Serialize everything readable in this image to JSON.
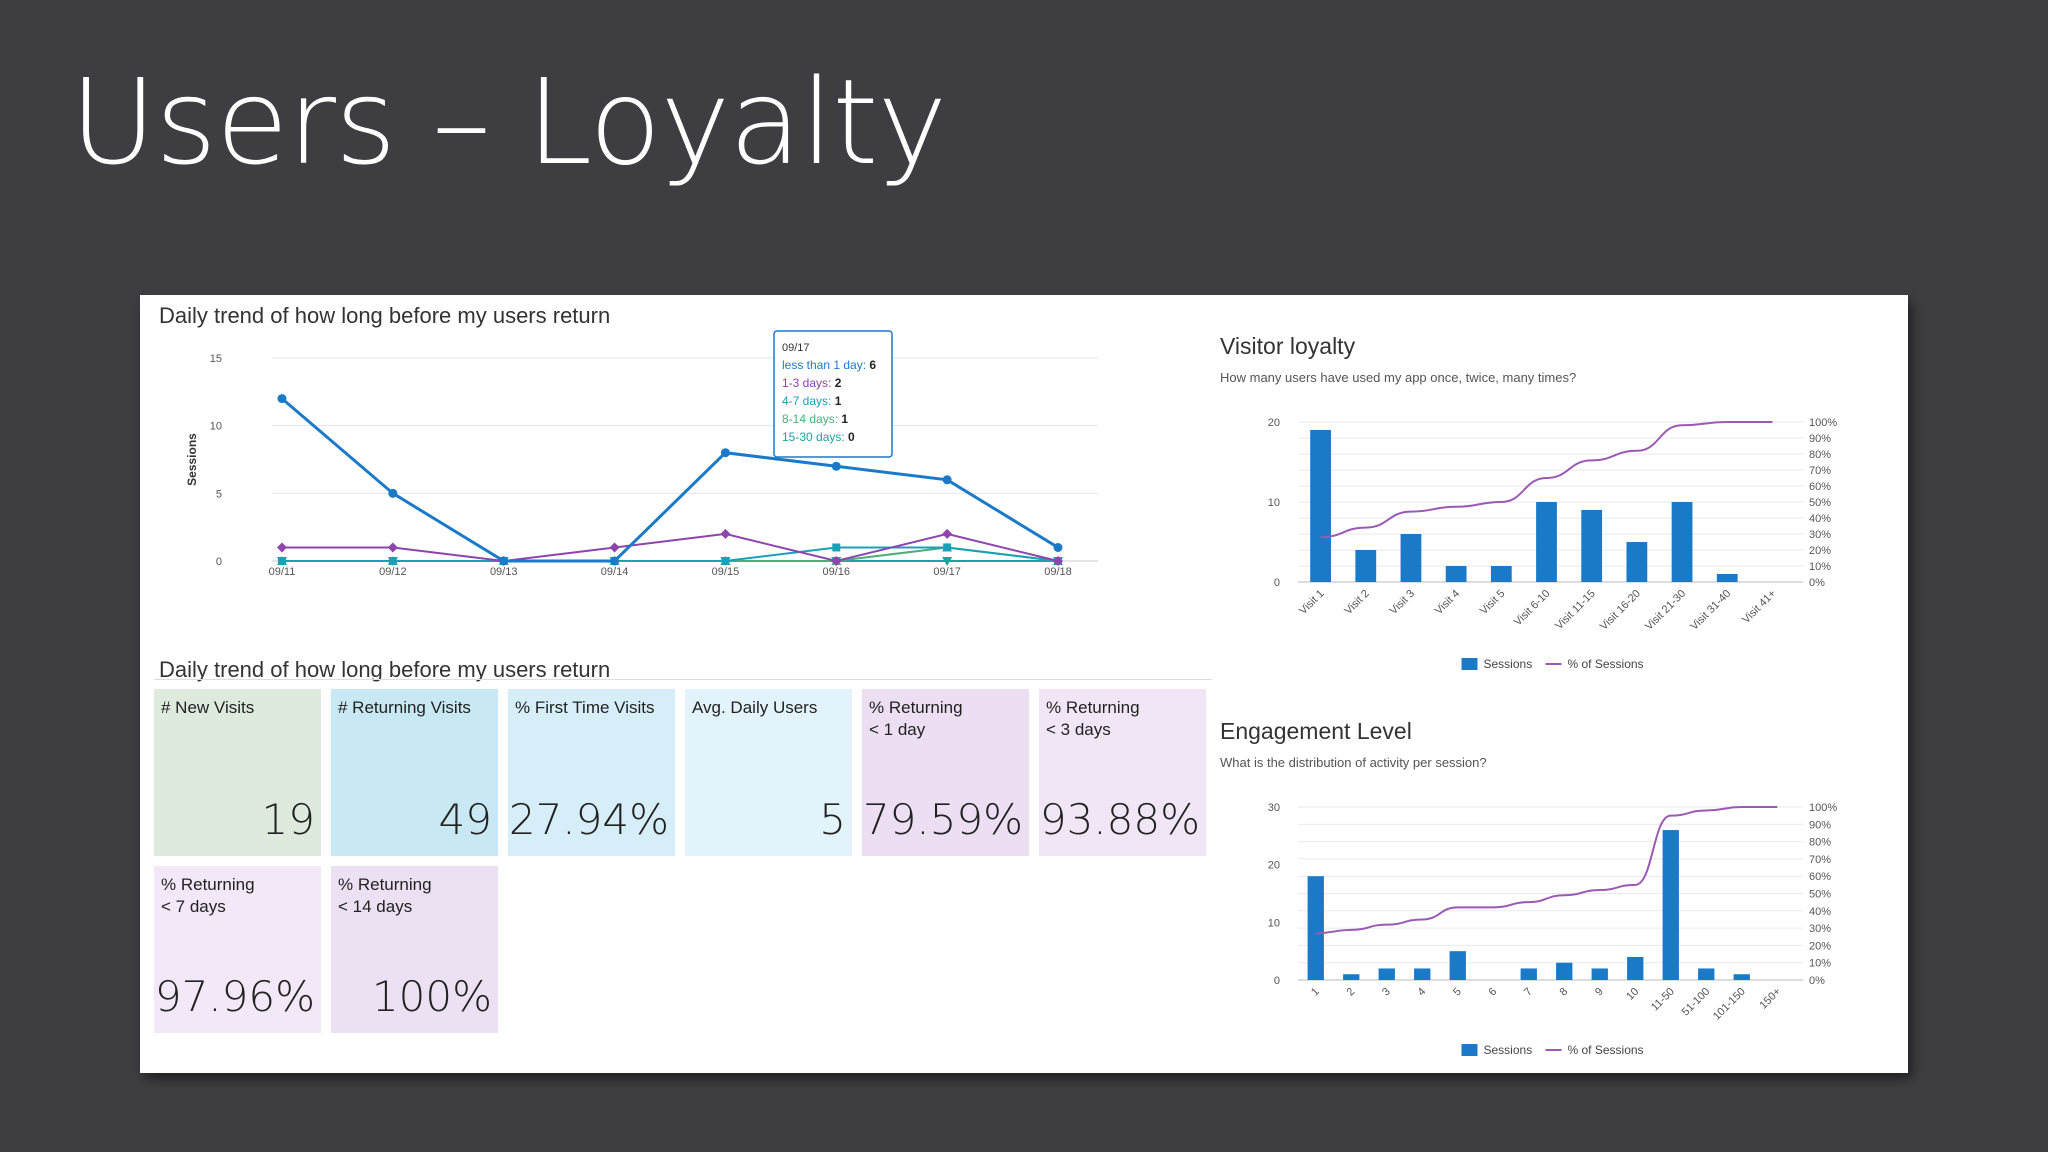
{
  "slide": {
    "title": "Users – Loyalty"
  },
  "trend": {
    "title": "Daily trend of how long before my users return",
    "ylabel": "Sessions",
    "tooltip": {
      "date": "09/17",
      "rows": [
        {
          "label": "less than 1 day",
          "value": "6",
          "color": "#1a7ac8"
        },
        {
          "label": "1-3 days",
          "value": "2",
          "color": "#8e44ad"
        },
        {
          "label": "4-7 days",
          "value": "1",
          "color": "#17a2b8"
        },
        {
          "label": "8-14 days",
          "value": "1",
          "color": "#4caf7a"
        },
        {
          "label": "15-30 days",
          "value": "0",
          "color": "#1aa3a0"
        }
      ]
    }
  },
  "kpi": {
    "title": "Daily trend of how long before my users return",
    "tiles": [
      {
        "label": "# New Visits",
        "value": "19",
        "color": "#dfeadf"
      },
      {
        "label": "# Returning Visits",
        "value": "49",
        "color": "#c8e9f4"
      },
      {
        "label": "% First Time Visits",
        "value": "27.94%",
        "color": "#d5eef8"
      },
      {
        "label": "Avg. Daily Users",
        "value": "5",
        "color": "#e3f3fb"
      },
      {
        "label": "% Returning\n< 1 day",
        "value": "79.59%",
        "color": "#ecdff3"
      },
      {
        "label": "% Returning\n< 3 days",
        "value": "93.88%",
        "color": "#f1e6f6"
      },
      {
        "label": "% Returning\n< 7 days",
        "value": "97.96%",
        "color": "#f2e8f7"
      },
      {
        "label": "% Returning\n< 14 days",
        "value": "100%",
        "color": "#ebe1f3"
      }
    ]
  },
  "loyalty": {
    "title": "Visitor loyalty",
    "subtitle": "How many users have used my app once, twice, many times?"
  },
  "engagement": {
    "title": "Engagement Level",
    "subtitle": "What is the distribution of activity per session?"
  },
  "chart_data": [
    {
      "type": "line",
      "title": "Daily trend of how long before my users return",
      "ylabel": "Sessions",
      "ylim": [
        0,
        15
      ],
      "yticks": [
        "0",
        "5",
        "10",
        "15"
      ],
      "categories": [
        "09/11",
        "09/12",
        "09/13",
        "09/14",
        "09/15",
        "09/16",
        "09/17",
        "09/18"
      ],
      "legend_position": "right",
      "series": [
        {
          "name": "less than 1 day",
          "color": "#1a7ac8",
          "marker": "circle",
          "values": [
            12,
            5,
            0,
            0,
            8,
            7,
            6,
            1
          ]
        },
        {
          "name": "1-3 days",
          "color": "#8e44ad",
          "marker": "diamond",
          "values": [
            1,
            1,
            0,
            1,
            2,
            0,
            2,
            0
          ]
        },
        {
          "name": "4-7 days",
          "color": "#17a2b8",
          "marker": "square",
          "values": [
            0,
            0,
            0,
            0,
            0,
            1,
            1,
            0
          ]
        },
        {
          "name": "8-14 days",
          "color": "#4caf7a",
          "marker": "triangle",
          "values": [
            0,
            0,
            0,
            0,
            0,
            0,
            1,
            0
          ]
        },
        {
          "name": "15-30 days",
          "color": "#1aa3a0",
          "marker": "triangle-down",
          "values": [
            0,
            0,
            0,
            0,
            0,
            0,
            0,
            0
          ]
        }
      ]
    },
    {
      "type": "bar",
      "title": "Visitor loyalty",
      "subtitle": "How many users have used my app once, twice, many times?",
      "categories": [
        "Visit 1",
        "Visit 2",
        "Visit 3",
        "Visit 4",
        "Visit 5",
        "Visit 6-10",
        "Visit 11-15",
        "Visit 16-20",
        "Visit 21-30",
        "Visit 31-40",
        "Visit 41+"
      ],
      "ylim": [
        0,
        20
      ],
      "yticks": [
        "0",
        "10",
        "20"
      ],
      "y2ticks": [
        "0%",
        "10%",
        "20%",
        "30%",
        "40%",
        "50%",
        "60%",
        "70%",
        "80%",
        "90%",
        "100%"
      ],
      "legend_position": "bottom",
      "series": [
        {
          "name": "Sessions",
          "color": "#1a7ac8",
          "values": [
            19,
            4,
            6,
            2,
            2,
            10,
            9,
            5,
            10,
            1,
            0
          ]
        },
        {
          "name": "% of Sessions",
          "color": "#9b59b6",
          "axis": "secondary",
          "values": [
            28,
            34,
            44,
            47,
            50,
            65,
            76,
            82,
            98,
            100,
            100
          ]
        }
      ]
    },
    {
      "type": "bar",
      "title": "Engagement Level",
      "subtitle": "What is the distribution of activity per session?",
      "categories": [
        "1",
        "2",
        "3",
        "4",
        "5",
        "6",
        "7",
        "8",
        "9",
        "10",
        "11-50",
        "51-100",
        "101-150",
        "150+"
      ],
      "ylim": [
        0,
        30
      ],
      "yticks": [
        "0",
        "10",
        "20",
        "30"
      ],
      "y2ticks": [
        "0%",
        "10%",
        "20%",
        "30%",
        "40%",
        "50%",
        "60%",
        "70%",
        "80%",
        "90%",
        "100%"
      ],
      "legend_position": "bottom",
      "series": [
        {
          "name": "Sessions",
          "color": "#1a7ac8",
          "values": [
            18,
            1,
            2,
            2,
            5,
            0,
            2,
            3,
            2,
            4,
            26,
            2,
            1,
            0
          ]
        },
        {
          "name": "% of Sessions",
          "color": "#9b59b6",
          "axis": "secondary",
          "values": [
            27,
            29,
            32,
            35,
            42,
            42,
            45,
            49,
            52,
            55,
            95,
            98,
            100,
            100
          ]
        }
      ]
    }
  ]
}
